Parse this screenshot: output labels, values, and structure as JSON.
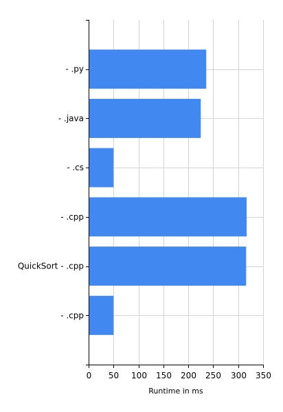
{
  "chart_data": {
    "type": "bar",
    "orientation": "horizontal",
    "categories": [
      "- .py",
      "- .java",
      "- .cs",
      "- .cpp",
      "QuickSort - .cpp",
      "- .cpp"
    ],
    "values": [
      236,
      225,
      50,
      317,
      316,
      50
    ],
    "title": "",
    "xlabel": "Runtime in ms",
    "ylabel": "",
    "xlim": [
      0,
      350
    ],
    "xticks": [
      0,
      50,
      100,
      150,
      200,
      250,
      300,
      350
    ],
    "grid": true,
    "legend": "none",
    "bar_color": "#4189F0",
    "grid_color": "#D3D3D3",
    "axis_color": "#000000"
  }
}
